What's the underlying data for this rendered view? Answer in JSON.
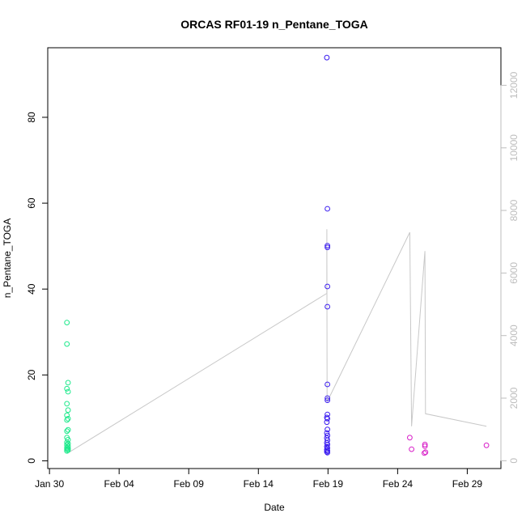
{
  "chart_data": {
    "type": "scatter",
    "title": "ORCAS RF01-19 n_Pentane_TOGA",
    "xlabel": "Date",
    "ylabel": "n_Pentane_TOGA",
    "x_is_date": true,
    "xlim": [
      "2016-01-29T21:00",
      "2016-03-02T10:00"
    ],
    "ylim": [
      -1.8,
      96.2
    ],
    "y2lim": [
      -250,
      13200
    ],
    "x_ticks": [
      {
        "date": "2016-01-30",
        "label": "Jan 30"
      },
      {
        "date": "2016-02-04",
        "label": "Feb 04"
      },
      {
        "date": "2016-02-09",
        "label": "Feb 09"
      },
      {
        "date": "2016-02-14",
        "label": "Feb 14"
      },
      {
        "date": "2016-02-19",
        "label": "Feb 19"
      },
      {
        "date": "2016-02-24",
        "label": "Feb 24"
      },
      {
        "date": "2016-02-29",
        "label": "Feb 29"
      }
    ],
    "y_ticks": [
      0,
      20,
      40,
      60,
      80
    ],
    "y2_ticks": [
      0,
      2000,
      4000,
      6000,
      8000,
      10000,
      12000
    ],
    "series": [
      {
        "color": "#1de98b",
        "points": [
          [
            "2016-01-31T06:00",
            32.2
          ],
          [
            "2016-01-31T06:00",
            27.2
          ],
          [
            "2016-01-31T08:00",
            18.2
          ],
          [
            "2016-01-31T06:00",
            16.8
          ],
          [
            "2016-01-31T08:00",
            16.1
          ],
          [
            "2016-01-31T06:00",
            13.3
          ],
          [
            "2016-01-31T08:00",
            11.8
          ],
          [
            "2016-01-31T06:00",
            10.6
          ],
          [
            "2016-01-31T08:00",
            9.8
          ],
          [
            "2016-01-31T06:00",
            9.5
          ],
          [
            "2016-01-31T08:00",
            7.2
          ],
          [
            "2016-01-31T06:00",
            6.9
          ],
          [
            "2016-01-31T06:00",
            5.4
          ],
          [
            "2016-01-31T08:00",
            4.9
          ],
          [
            "2016-01-31T06:00",
            4.3
          ],
          [
            "2016-01-31T08:00",
            4.0
          ],
          [
            "2016-01-31T06:00",
            3.7
          ],
          [
            "2016-01-31T08:00",
            3.4
          ],
          [
            "2016-01-31T06:00",
            3.1
          ],
          [
            "2016-01-31T08:00",
            2.9
          ],
          [
            "2016-01-31T06:00",
            2.7
          ],
          [
            "2016-01-31T08:00",
            2.5
          ],
          [
            "2016-01-31T06:00",
            2.3
          ]
        ]
      },
      {
        "color": "#3a1cf0",
        "points": [
          [
            "2016-02-18T22:00",
            93.9
          ],
          [
            "2016-02-18T23:00",
            58.7
          ],
          [
            "2016-02-18T23:00",
            50.1
          ],
          [
            "2016-02-18T23:00",
            49.7
          ],
          [
            "2016-02-18T23:00",
            40.6
          ],
          [
            "2016-02-18T23:00",
            35.9
          ],
          [
            "2016-02-18T23:00",
            17.8
          ],
          [
            "2016-02-18T23:00",
            14.6
          ],
          [
            "2016-02-18T23:00",
            14.1
          ],
          [
            "2016-02-18T23:00",
            10.8
          ],
          [
            "2016-02-18T22:00",
            10.1
          ],
          [
            "2016-02-18T23:00",
            9.8
          ],
          [
            "2016-02-18T22:00",
            9.0
          ],
          [
            "2016-02-18T23:00",
            7.3
          ],
          [
            "2016-02-18T22:00",
            6.5
          ],
          [
            "2016-02-18T23:00",
            5.9
          ],
          [
            "2016-02-18T22:00",
            5.3
          ],
          [
            "2016-02-18T23:00",
            4.8
          ],
          [
            "2016-02-18T22:00",
            4.2
          ],
          [
            "2016-02-18T23:00",
            3.8
          ],
          [
            "2016-02-18T22:00",
            3.3
          ],
          [
            "2016-02-18T23:00",
            3.0
          ],
          [
            "2016-02-18T22:00",
            2.6
          ],
          [
            "2016-02-18T23:00",
            2.3
          ],
          [
            "2016-02-18T22:00",
            2.1
          ],
          [
            "2016-02-18T23:00",
            1.9
          ]
        ]
      },
      {
        "color": "#d81fc8",
        "points": [
          [
            "2016-02-24T21:00",
            5.4
          ],
          [
            "2016-02-25T00:00",
            2.7
          ],
          [
            "2016-02-25T23:00",
            3.8
          ],
          [
            "2016-02-25T23:00",
            3.4
          ],
          [
            "2016-02-26T00:00",
            2.0
          ],
          [
            "2016-02-25T22:00",
            1.8
          ],
          [
            "2016-03-01T09:00",
            3.6
          ]
        ]
      }
    ],
    "secondary_line": {
      "color": "#c8c8c8",
      "points": [
        [
          "2016-01-31T08:00",
          250
        ],
        [
          "2016-02-18T22:00",
          5350
        ],
        [
          "2016-02-18T22:00",
          7400
        ],
        [
          "2016-02-18T22:30",
          2000
        ],
        [
          "2016-02-18T23:00",
          1900
        ],
        [
          "2016-02-24T21:00",
          7300
        ],
        [
          "2016-02-25T00:00",
          1100
        ],
        [
          "2016-02-25T23:00",
          6700
        ],
        [
          "2016-02-26T00:00",
          1500
        ],
        [
          "2016-03-01T09:00",
          1100
        ]
      ]
    }
  }
}
